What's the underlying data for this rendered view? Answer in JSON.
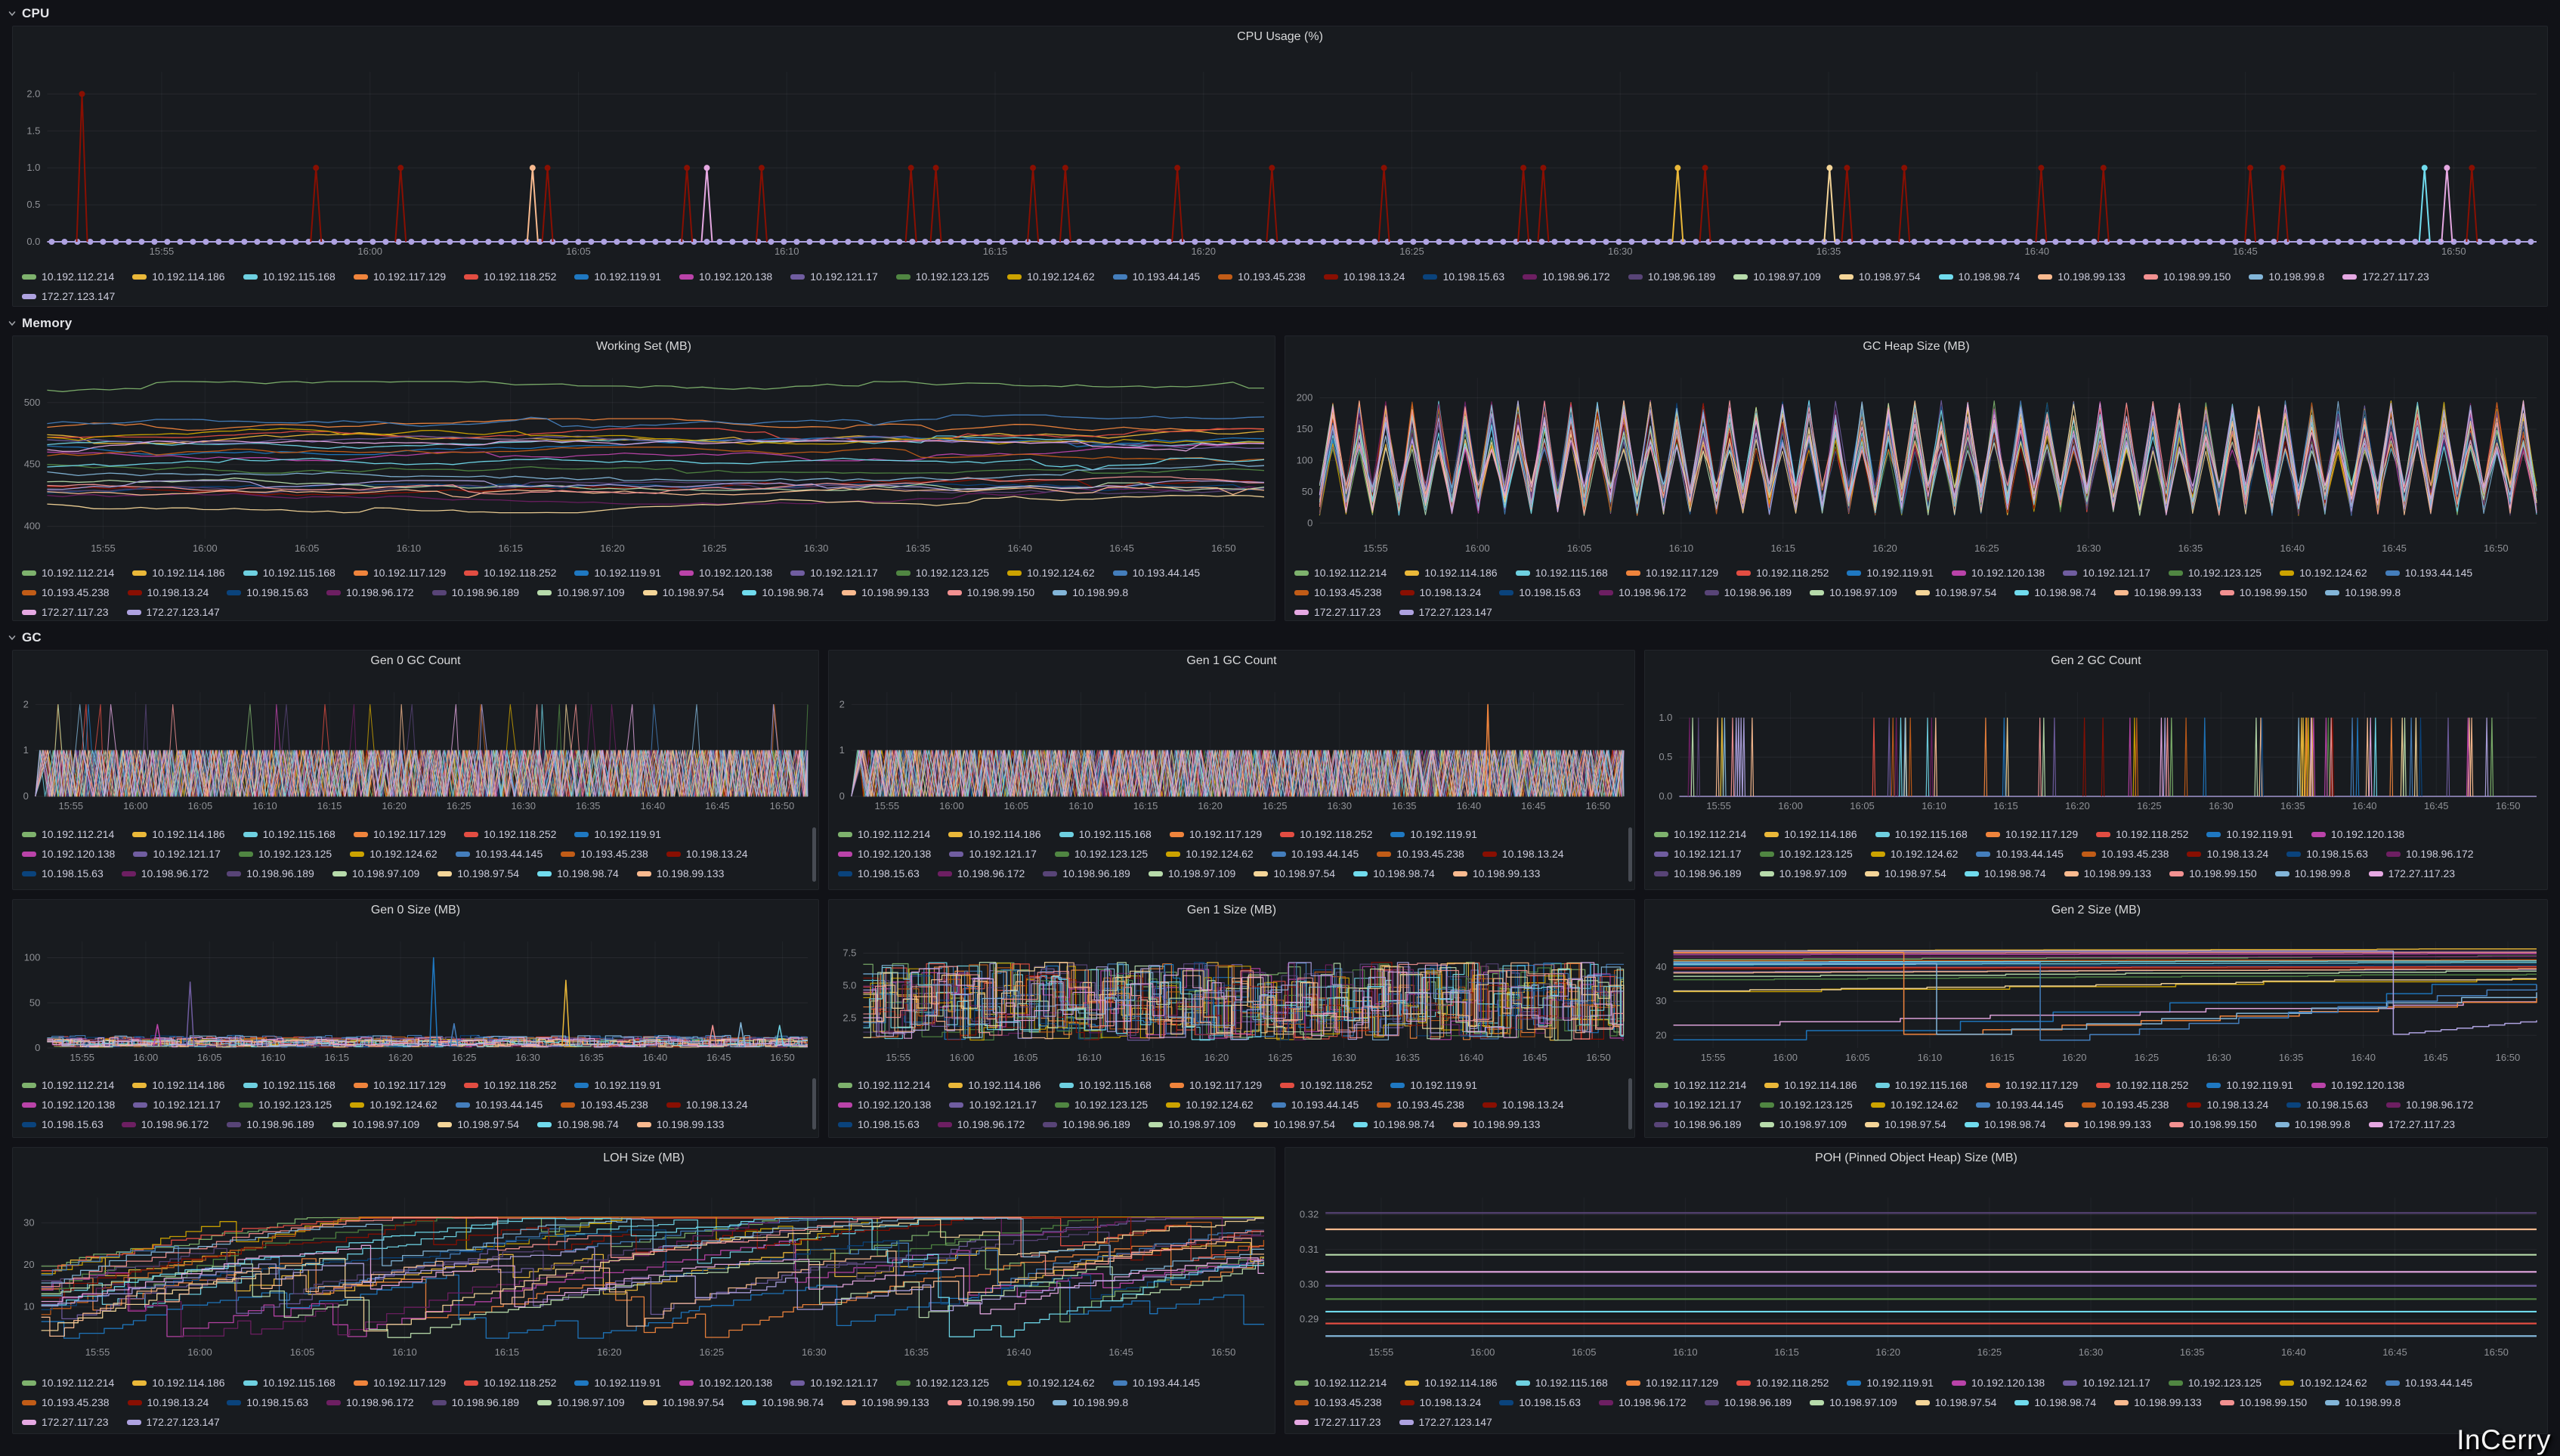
{
  "watermark": "InCerry",
  "sections": {
    "cpu": {
      "title": "CPU"
    },
    "memory": {
      "title": "Memory"
    },
    "gc": {
      "title": "GC"
    }
  },
  "chart_data": {
    "type": "grafana-time-series-dashboard",
    "time_ticks": [
      "15:55",
      "16:00",
      "16:05",
      "16:10",
      "16:15",
      "16:20",
      "16:25",
      "16:30",
      "16:35",
      "16:40",
      "16:45",
      "16:50"
    ],
    "series": [
      {
        "name": "10.192.112.214",
        "color": "#7EB26D"
      },
      {
        "name": "10.192.114.186",
        "color": "#EAB839"
      },
      {
        "name": "10.192.115.168",
        "color": "#6ED0E0"
      },
      {
        "name": "10.192.117.129",
        "color": "#EF843C"
      },
      {
        "name": "10.192.118.252",
        "color": "#E24D42"
      },
      {
        "name": "10.192.119.91",
        "color": "#1F78C1"
      },
      {
        "name": "10.192.120.138",
        "color": "#BA43A9"
      },
      {
        "name": "10.192.121.17",
        "color": "#705DA0"
      },
      {
        "name": "10.192.123.125",
        "color": "#508642"
      },
      {
        "name": "10.192.124.62",
        "color": "#CCA300"
      },
      {
        "name": "10.193.44.145",
        "color": "#447EBC"
      },
      {
        "name": "10.193.45.238",
        "color": "#C15C17"
      },
      {
        "name": "10.198.13.24",
        "color": "#890F02"
      },
      {
        "name": "10.198.15.63",
        "color": "#0A437C"
      },
      {
        "name": "10.198.96.172",
        "color": "#6D1F62"
      },
      {
        "name": "10.198.96.189",
        "color": "#584477"
      },
      {
        "name": "10.198.97.109",
        "color": "#B7DBAB"
      },
      {
        "name": "10.198.97.54",
        "color": "#F4D598"
      },
      {
        "name": "10.198.98.74",
        "color": "#70DBED"
      },
      {
        "name": "10.198.99.133",
        "color": "#F9BA8F"
      },
      {
        "name": "10.198.99.150",
        "color": "#F29191"
      },
      {
        "name": "10.198.99.8",
        "color": "#82B5D8"
      },
      {
        "name": "172.27.117.23",
        "color": "#E5A8E2"
      },
      {
        "name": "172.27.123.147",
        "color": "#AEA2E0"
      }
    ],
    "panels": {
      "cpu": {
        "title": "CPU Usage (%)",
        "type": "line",
        "unit": "%",
        "y_ticks": [
          "0.0",
          "0.5",
          "1.0",
          "1.5",
          "2.0"
        ],
        "y_range": [
          0,
          2.3
        ],
        "legend_count": 24,
        "legend_scroll": false,
        "pattern": {
          "kind": "dots-spikes",
          "baseline": 0,
          "dot_color": "#AEA2E0",
          "spikes": [
            [
              0.014,
              2,
              "#890F02"
            ],
            [
              0.108,
              1,
              "#890F02"
            ],
            [
              0.142,
              1,
              "#890F02"
            ],
            [
              0.195,
              1,
              "#F9BA8F"
            ],
            [
              0.201,
              1,
              "#890F02"
            ],
            [
              0.257,
              1,
              "#890F02"
            ],
            [
              0.265,
              1,
              "#E5A8E2"
            ],
            [
              0.287,
              1,
              "#890F02"
            ],
            [
              0.347,
              1,
              "#890F02"
            ],
            [
              0.357,
              1,
              "#890F02"
            ],
            [
              0.396,
              1,
              "#890F02"
            ],
            [
              0.409,
              1,
              "#890F02"
            ],
            [
              0.454,
              1,
              "#890F02"
            ],
            [
              0.492,
              1,
              "#890F02"
            ],
            [
              0.537,
              1,
              "#890F02"
            ],
            [
              0.593,
              1,
              "#890F02"
            ],
            [
              0.601,
              1,
              "#890F02"
            ],
            [
              0.655,
              1,
              "#EAB839"
            ],
            [
              0.666,
              1,
              "#890F02"
            ],
            [
              0.716,
              1,
              "#F4D598"
            ],
            [
              0.723,
              1,
              "#890F02"
            ],
            [
              0.746,
              1,
              "#890F02"
            ],
            [
              0.801,
              1,
              "#890F02"
            ],
            [
              0.826,
              1,
              "#890F02"
            ],
            [
              0.885,
              1,
              "#890F02"
            ],
            [
              0.898,
              1,
              "#890F02"
            ],
            [
              0.955,
              1,
              "#70DBED"
            ],
            [
              0.964,
              1,
              "#E5A8E2"
            ],
            [
              0.974,
              1,
              "#890F02"
            ]
          ]
        }
      },
      "working_set": {
        "title": "Working Set (MB)",
        "type": "line",
        "unit": "MB",
        "y_ticks": [
          "400",
          "450",
          "500"
        ],
        "y_range": [
          390,
          520
        ],
        "legend_count": 24,
        "legend_scroll": false,
        "pattern": {
          "kind": "walk",
          "jitter": 3.2,
          "levels": [
            510,
            474,
            466,
            480,
            472,
            465,
            460,
            470,
            450,
            472,
            483,
            457,
            432,
            427,
            425,
            429,
            436,
            418,
            448,
            428,
            433,
            444,
            462,
            430
          ]
        }
      },
      "gc_heap": {
        "title": "GC Heap Size (MB)",
        "type": "line",
        "unit": "MB",
        "y_ticks": [
          "0",
          "50",
          "100",
          "150",
          "200"
        ],
        "y_range": [
          -25,
          232
        ],
        "legend_count": 24,
        "legend_scroll": false,
        "pattern": {
          "kind": "zigzag",
          "low": 12,
          "high": 196
        }
      },
      "gen0_count": {
        "title": "Gen 0 GC Count",
        "type": "line",
        "y_ticks": [
          "0",
          "1",
          "2"
        ],
        "y_range": [
          0,
          2.27
        ],
        "legend_count": 20,
        "legend_scroll": true,
        "pattern": {
          "kind": "squarewave",
          "lo": 0,
          "hi": 1,
          "spike_value": 2,
          "spike_prob": 0.025,
          "spikes": []
        }
      },
      "gen1_count": {
        "title": "Gen 1 GC Count",
        "type": "line",
        "y_ticks": [
          "0",
          "1",
          "2"
        ],
        "y_range": [
          0,
          2.27
        ],
        "legend_count": 20,
        "legend_scroll": true,
        "pattern": {
          "kind": "squarewave",
          "lo": 0,
          "hi": 1,
          "spike_value": 2,
          "spike_prob": 0,
          "spikes": [
            [
              0.824,
              2,
              "#EF843C"
            ]
          ]
        }
      },
      "gen2_count": {
        "title": "Gen 2 GC Count",
        "type": "line",
        "y_ticks": [
          "0.0",
          "0.5",
          "1.0"
        ],
        "y_range": [
          0,
          1.33
        ],
        "legend_count": 24,
        "legend_scroll": false,
        "pattern": {
          "kind": "spikes",
          "value": 1,
          "clusters": 40,
          "baseline_color": "#AEA2E0"
        }
      },
      "gen0_size": {
        "title": "Gen 0 Size (MB)",
        "type": "line",
        "unit": "MB",
        "y_ticks": [
          "0",
          "50",
          "100"
        ],
        "y_range": [
          0,
          118
        ],
        "legend_count": 20,
        "legend_scroll": true,
        "pattern": {
          "kind": "jitter",
          "low": 1,
          "base_min": 8,
          "base_max": 15,
          "spikes": [
            [
              0.188,
              73,
              "#705DA0"
            ],
            [
              0.508,
              100,
              "#1F78C1"
            ],
            [
              0.682,
              75,
              "#EAB839"
            ],
            [
              0.145,
              26,
              "#BA43A9"
            ],
            [
              0.535,
              27,
              "#447EBC"
            ],
            [
              0.875,
              25,
              "#F29191"
            ],
            [
              0.912,
              28,
              "#82B5D8"
            ],
            [
              0.963,
              25,
              "#6ED0E0"
            ]
          ]
        }
      },
      "gen1_size": {
        "title": "Gen 1 Size (MB)",
        "type": "line",
        "unit": "MB",
        "y_ticks": [
          "2.5",
          "5.0",
          "7.5"
        ],
        "y_range": [
          0.2,
          8.4
        ],
        "legend_count": 20,
        "legend_scroll": true,
        "pattern": {
          "kind": "steps",
          "low": 0.8,
          "high": 6.8
        }
      },
      "gen2_size": {
        "title": "Gen 2 Size (MB)",
        "type": "line",
        "unit": "MB",
        "y_ticks": [
          "20",
          "30",
          "40"
        ],
        "y_range": [
          16.3,
          47.5
        ],
        "legend_count": 24,
        "legend_scroll": false,
        "pattern": {
          "kind": "flat-droppers",
          "flats": [
            [
              "#7EB26D",
              42.2,
              43.2
            ],
            [
              "#EAB839",
              44.8,
              45.3
            ],
            [
              "#6ED0E0",
              40.7,
              41.3
            ],
            [
              "#E24D42",
              39.8,
              40.1
            ],
            [
              "#1F78C1",
              18.7,
              34.9
            ],
            [
              "#BA43A9",
              43.6,
              43.9
            ],
            [
              "#705DA0",
              38.6,
              39.3
            ],
            [
              "#508642",
              36.3,
              37.9
            ],
            [
              "#CCA300",
              32.8,
              36.4
            ],
            [
              "#C15C17",
              41.8,
              42.1
            ],
            [
              "#890F02",
              39.4,
              39.7
            ],
            [
              "#0A437C",
              40.3,
              40.6
            ],
            [
              "#6D1F62",
              42.9,
              43.1
            ],
            [
              "#584477",
              44.3,
              44.6
            ],
            [
              "#B7DBAB",
              37.3,
              38.8
            ],
            [
              "#F4D598",
              33.0,
              36.6
            ],
            [
              "#F9BA8F",
              38.3,
              39.5
            ],
            [
              "#F29191",
              44.1,
              44.3
            ],
            [
              "#E5A8E2",
              23.0,
              29.8
            ],
            [
              "#70DBED",
              41.5,
              41.8
            ]
          ],
          "droppers": [
            [
              "#EF843C",
              44.3,
              0.267,
              20.3,
              31.0
            ],
            [
              "#82B5D8",
              41.0,
              0.305,
              20.3,
              32.6
            ],
            [
              "#447EBC",
              41.3,
              0.425,
              18.6,
              34.9
            ],
            [
              "#AEA2E0",
              44.7,
              0.834,
              20.3,
              24.4
            ]
          ]
        }
      },
      "loh": {
        "title": "LOH Size (MB)",
        "type": "line",
        "unit": "MB",
        "y_ticks": [
          "10",
          "20",
          "30"
        ],
        "y_range": [
          1.5,
          36
        ],
        "legend_count": 24,
        "legend_scroll": false,
        "pattern": {
          "kind": "rise-saw",
          "start_min": 3,
          "start_max": 20,
          "end_min": 9,
          "end_max": 30,
          "floor": 2.2,
          "cap": 31.5
        }
      },
      "poh": {
        "title": "POH (Pinned Object Heap) Size (MB)",
        "type": "line",
        "unit": "MB",
        "y_ticks": [
          "0.29",
          "0.30",
          "0.31",
          "0.32"
        ],
        "y_range": [
          0.2833,
          0.3249
        ],
        "legend_count": 24,
        "legend_scroll": false,
        "pattern": {
          "kind": "flat-lines",
          "lines": [
            [
              "#584477",
              0.3205
            ],
            [
              "#F9BA8F",
              0.3158
            ],
            [
              "#B7DBAB",
              0.3085
            ],
            [
              "#E5A8E2",
              0.3036
            ],
            [
              "#705DA0",
              0.2996
            ],
            [
              "#508642",
              0.2958
            ],
            [
              "#70DBED",
              0.2922
            ],
            [
              "#E24D42",
              0.2888
            ],
            [
              "#82B5D8",
              0.2852
            ]
          ]
        }
      }
    }
  }
}
